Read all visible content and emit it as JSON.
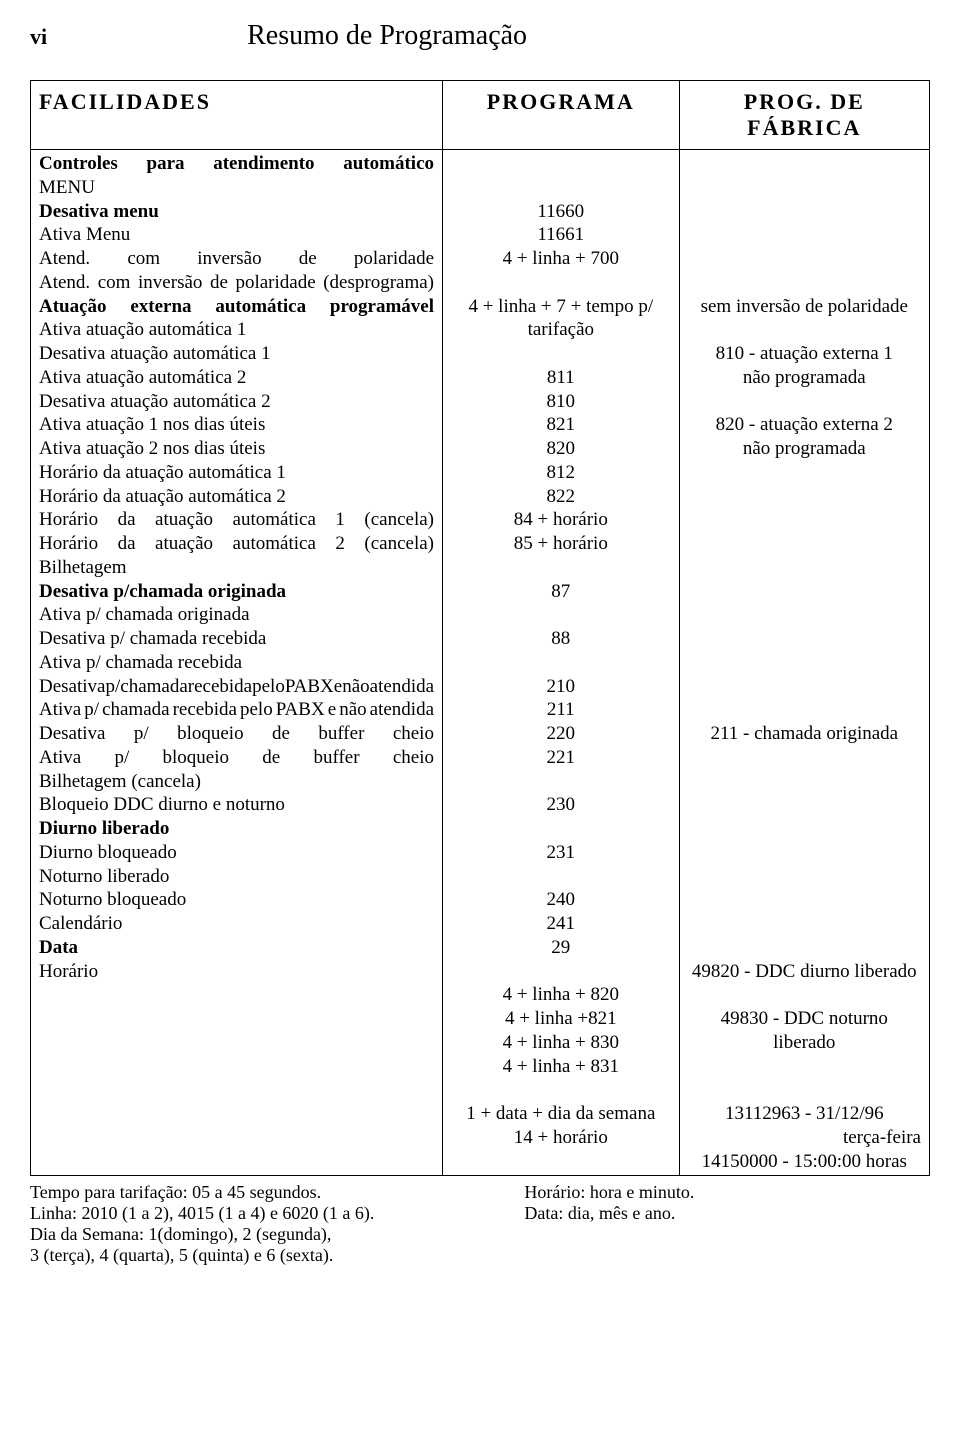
{
  "page_number_label": "vi",
  "page_title": "Resumo de Programação",
  "headers": {
    "facilidades": "FACILIDADES",
    "programa": "PROGRAMA",
    "fabrica": "PROG. DE FÁBRICA"
  },
  "rows": [
    {
      "fac": "Controles para atendimento automático\nMENU\nDesativa menu\nAtiva Menu\nAtend. com inversão de polaridade\nAtend. com inversão de polaridade (desprograma)\nAtuação externa automática programável\nAtiva atuação automática 1\nDesativa atuação automática 1\nAtiva atuação automática 2\nDesativa atuação automática 2\nAtiva atuação 1 nos dias úteis\nAtiva atuação 2 nos dias úteis\nHorário da atuação automática 1\nHorário da atuação automática 2\nHorário da atuação automática 1 (cancela)\nHorário da atuação automática 2 (cancela)\nBilhetagem\nDesativa p/chamada originada\nAtiva p/ chamada originada\nDesativa p/ chamada recebida\nAtiva p/ chamada recebida\nDesativa p/ chamada recebida pelo PABX e não atendida\nAtiva p/ chamada recebida pelo PABX e não atendida\nDesativa p/ bloqueio de buffer cheio\nAtiva p/ bloqueio de buffer cheio\nBilhetagem (cancela)\nBloqueio DDC diurno e noturno\nDiurno liberado\nDiurno bloqueado\nNoturno liberado\nNoturno bloqueado\nCalendário\nData\nHorário",
      "fac_bold_lines": [
        0,
        2,
        6,
        18,
        28,
        33
      ],
      "fac_justify_lines": [
        0,
        4,
        5,
        6,
        15,
        16,
        17,
        22,
        23,
        24,
        25
      ],
      "prog": "\n\n11660\n11661\n4 + linha + 700\n\n4 + linha + 7 + tempo p/ tarifação\n\n811\n810\n821\n820\n812\n822\n84 + horário\n85 + horário\n\n87\n\n88\n\n210\n211\n220\n221\n\n230\n\n231\n\n240\n241\n29\n\n4 + linha + 820\n4 + linha +821\n4 + linha + 830\n4 + linha + 831\n\n1 + data + dia da semana\n14 + horário",
      "fab": "\n\n\n\n\n\nsem inversão de polaridade\n\n810 - atuação externa 1\nnão programada\n\n820 - atuação externa 2\nnão programada\n\n\n\n\n\n\n\n\n\n\n\n211 - chamada originada\n\n\n\n\n\n\n\n\n\n49820 - DDC diurno liberado\n\n49830 - DDC noturno liberado\n\n\n13112963 - 31/12/96\nterça-feira\n14150000 - 15:00:00 horas",
      "fab_align": [
        "",
        "",
        "",
        "",
        "",
        "",
        "center",
        "",
        "center",
        "center",
        "",
        "center",
        "center",
        "",
        "",
        "",
        "",
        "",
        "",
        "",
        "",
        "",
        "",
        "",
        "center",
        "",
        "",
        "",
        "",
        "",
        "",
        "",
        "",
        "",
        "center",
        "",
        "center",
        "",
        "",
        "center",
        "right",
        "center"
      ]
    }
  ],
  "footnote": {
    "left1": "Tempo para tarifação: 05 a 45 segundos.",
    "left2": "Linha: 2010 (1 a 2), 4015 (1 a 4) e 6020 (1 a 6).",
    "left3": "Dia da Semana: 1(domingo), 2 (segunda),",
    "left4": "3 (terça), 4 (quarta), 5 (quinta) e 6 (sexta).",
    "right1": "Horário: hora e minuto.",
    "right2": "Data: dia, mês e ano."
  }
}
